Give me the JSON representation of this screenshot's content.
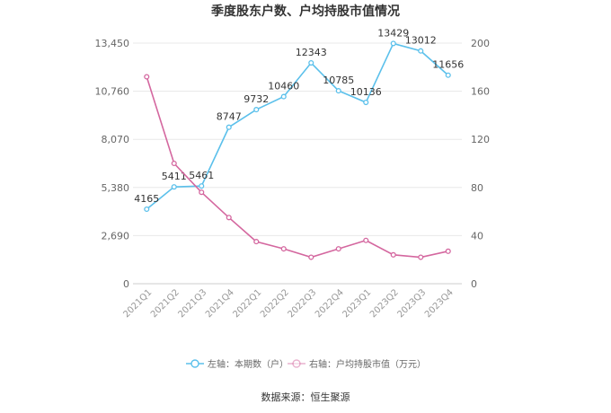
{
  "chart_data": {
    "type": "line",
    "title": "季度股东户数、户均持股市值情况",
    "categories": [
      "2021Q1",
      "2021Q2",
      "2021Q3",
      "2021Q4",
      "2022Q1",
      "2022Q2",
      "2022Q3",
      "2022Q4",
      "2023Q1",
      "2023Q2",
      "2023Q3",
      "2023Q4"
    ],
    "left_axis": {
      "ticks": [
        "0",
        "2,690",
        "5,380",
        "8,070",
        "10,760",
        "13,450"
      ],
      "range": [
        0,
        13450
      ]
    },
    "right_axis": {
      "ticks": [
        "0",
        "40",
        "80",
        "120",
        "160",
        "200"
      ],
      "range": [
        0,
        200
      ]
    },
    "grid": true,
    "series": [
      {
        "name": "左轴：本期数（户）",
        "axis": "left",
        "color": "#5bc0eb",
        "values": [
          4165,
          5411,
          5461,
          8747,
          9732,
          10460,
          12343,
          10785,
          10136,
          13429,
          13012,
          11656
        ],
        "labels": [
          "4165",
          "5411",
          "5461",
          "8747",
          "9732",
          "10460",
          "12343",
          "10785",
          "10136",
          "13429",
          "13012",
          "11656"
        ]
      },
      {
        "name": "右轴：户均持股市值（万元）",
        "axis": "right",
        "color": "#d4679f",
        "values": [
          172,
          100,
          76,
          55,
          35,
          29,
          22,
          29,
          36,
          24,
          22,
          27
        ]
      }
    ],
    "legend_position": "bottom"
  },
  "source": "数据来源：恒生聚源"
}
